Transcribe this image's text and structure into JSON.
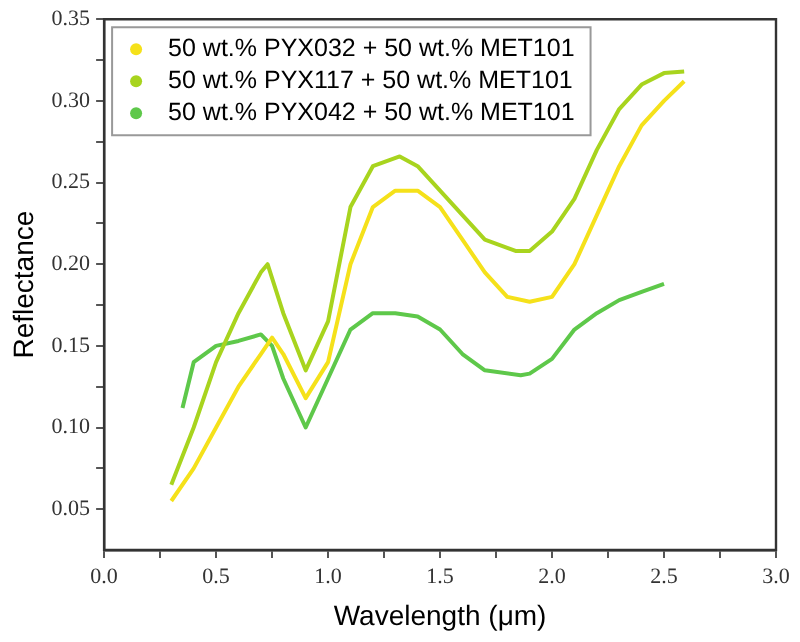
{
  "chart_data": {
    "type": "line",
    "xlabel": "Wavelength (μm)",
    "ylabel": "Reflectance",
    "xlim": [
      0,
      3
    ],
    "ylim": [
      0.025,
      0.35
    ],
    "xticks": [
      {
        "value": 0,
        "label": "0.0"
      },
      {
        "value": 0.25,
        "label": null
      },
      {
        "value": 0.5,
        "label": "0.5"
      },
      {
        "value": 0.75,
        "label": null
      },
      {
        "value": 1,
        "label": "1.0"
      },
      {
        "value": 1.25,
        "label": null
      },
      {
        "value": 1.5,
        "label": "1.5"
      },
      {
        "value": 1.75,
        "label": null
      },
      {
        "value": 2,
        "label": "2.0"
      },
      {
        "value": 2.25,
        "label": null
      },
      {
        "value": 2.5,
        "label": "2.5"
      },
      {
        "value": 2.75,
        "label": null
      },
      {
        "value": 3,
        "label": "3.0"
      }
    ],
    "yticks": [
      {
        "value": 0.05,
        "label": "0.05"
      },
      {
        "value": 0.075,
        "label": null
      },
      {
        "value": 0.1,
        "label": "0.10"
      },
      {
        "value": 0.125,
        "label": null
      },
      {
        "value": 0.15,
        "label": "0.15"
      },
      {
        "value": 0.175,
        "label": null
      },
      {
        "value": 0.2,
        "label": "0.20"
      },
      {
        "value": 0.225,
        "label": null
      },
      {
        "value": 0.25,
        "label": "0.25"
      },
      {
        "value": 0.275,
        "label": null
      },
      {
        "value": 0.3,
        "label": "0.30"
      },
      {
        "value": 0.325,
        "label": null
      },
      {
        "value": 0.35,
        "label": "0.35"
      }
    ],
    "grid": false,
    "legend": "top left",
    "line_style": "solid",
    "series": [
      {
        "name": "50 wt.% PYX032 + 50 wt.% MET101",
        "color": "#f5e11a",
        "x": [
          0.3,
          0.4,
          0.5,
          0.6,
          0.7,
          0.75,
          0.8,
          0.9,
          1.0,
          1.1,
          1.2,
          1.3,
          1.4,
          1.5,
          1.6,
          1.7,
          1.8,
          1.9,
          2.0,
          2.1,
          2.2,
          2.3,
          2.4,
          2.5,
          2.59
        ],
        "values": [
          0.055,
          0.075,
          0.1,
          0.125,
          0.145,
          0.155,
          0.145,
          0.118,
          0.14,
          0.2,
          0.235,
          0.245,
          0.245,
          0.235,
          0.215,
          0.195,
          0.18,
          0.177,
          0.18,
          0.2,
          0.23,
          0.26,
          0.285,
          0.3,
          0.312
        ]
      },
      {
        "name": "50 wt.% PYX117 + 50 wt.% MET101",
        "color": "#a8d41e",
        "x": [
          0.3,
          0.4,
          0.5,
          0.6,
          0.7,
          0.73,
          0.8,
          0.9,
          1.0,
          1.1,
          1.2,
          1.32,
          1.4,
          1.5,
          1.6,
          1.7,
          1.84,
          1.9,
          2.0,
          2.1,
          2.2,
          2.3,
          2.4,
          2.5,
          2.59
        ],
        "values": [
          0.065,
          0.1,
          0.14,
          0.17,
          0.195,
          0.2,
          0.17,
          0.135,
          0.165,
          0.235,
          0.26,
          0.266,
          0.26,
          0.245,
          0.23,
          0.215,
          0.208,
          0.208,
          0.22,
          0.24,
          0.27,
          0.295,
          0.31,
          0.317,
          0.318
        ]
      },
      {
        "name": "50 wt.% PYX042 + 50 wt.% MET101",
        "color": "#5ec84a",
        "x": [
          0.35,
          0.4,
          0.5,
          0.6,
          0.7,
          0.75,
          0.8,
          0.9,
          1.0,
          1.1,
          1.2,
          1.3,
          1.4,
          1.5,
          1.6,
          1.7,
          1.86,
          1.9,
          2.0,
          2.1,
          2.2,
          2.3,
          2.4,
          2.5
        ],
        "values": [
          0.112,
          0.14,
          0.15,
          0.153,
          0.157,
          0.15,
          0.13,
          0.1,
          0.13,
          0.16,
          0.17,
          0.17,
          0.168,
          0.16,
          0.145,
          0.135,
          0.132,
          0.133,
          0.142,
          0.16,
          0.17,
          0.178,
          0.183,
          0.188
        ]
      }
    ]
  }
}
